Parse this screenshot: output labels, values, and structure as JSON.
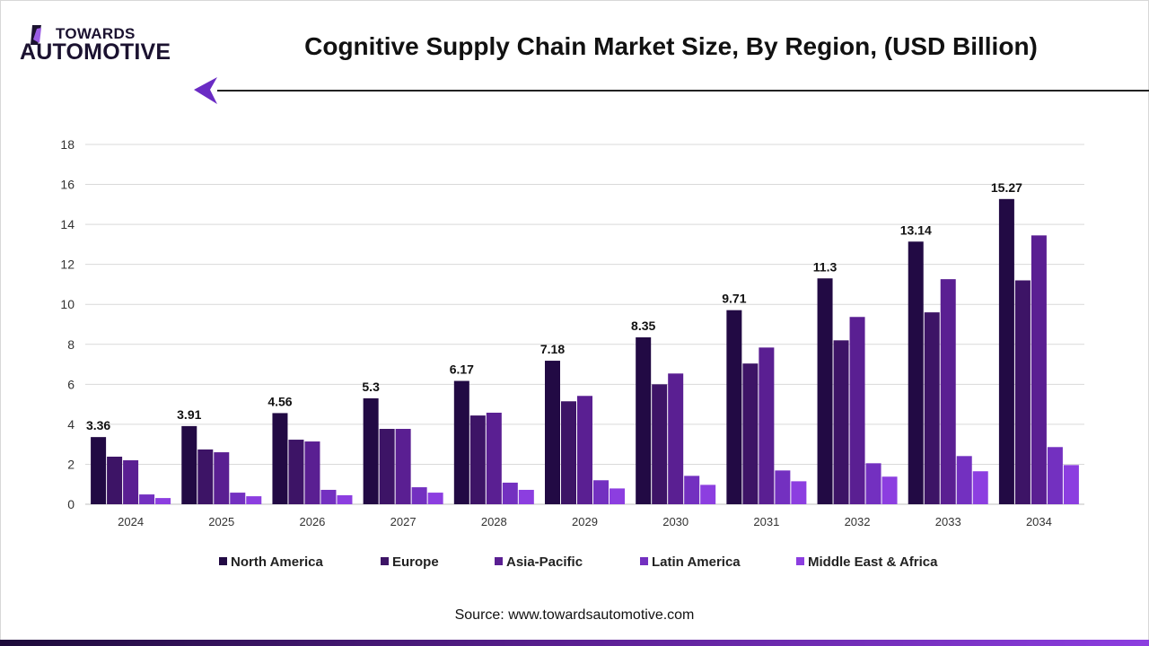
{
  "logo": {
    "top": "TOWARDS",
    "bottom": "AUTOMOTIVE"
  },
  "header": {
    "title": "Cognitive Supply Chain Market Size, By Region, (USD Billion)"
  },
  "footer": {
    "source": "Source: www.towardsautomotive.com"
  },
  "chart_data": {
    "type": "bar",
    "title": "Cognitive Supply Chain Market Size, By Region, (USD Billion)",
    "xlabel": "",
    "ylabel": "",
    "ylim": [
      0,
      18
    ],
    "yticks": [
      0,
      2,
      4,
      6,
      8,
      10,
      12,
      14,
      16,
      18
    ],
    "grid": true,
    "legend": "bottom",
    "categories": [
      "2024",
      "2025",
      "2026",
      "2027",
      "2028",
      "2029",
      "2030",
      "2031",
      "2032",
      "2033",
      "2034"
    ],
    "series": [
      {
        "name": "North America",
        "color": "#220a44",
        "values": [
          3.36,
          3.91,
          4.56,
          5.3,
          6.17,
          7.18,
          8.35,
          9.71,
          11.3,
          13.14,
          15.27
        ],
        "labeled": true
      },
      {
        "name": "Europe",
        "color": "#3d1466",
        "values": [
          2.38,
          2.74,
          3.23,
          3.77,
          4.44,
          5.15,
          6.0,
          7.04,
          8.2,
          9.6,
          11.2
        ]
      },
      {
        "name": "Asia-Pacific",
        "color": "#5a1f92",
        "values": [
          2.2,
          2.6,
          3.14,
          3.77,
          4.58,
          5.42,
          6.54,
          7.84,
          9.37,
          11.26,
          13.45
        ]
      },
      {
        "name": "Latin America",
        "color": "#7330c0",
        "values": [
          0.49,
          0.58,
          0.72,
          0.85,
          1.08,
          1.2,
          1.42,
          1.69,
          2.05,
          2.41,
          2.86
        ]
      },
      {
        "name": "Middle East & Africa",
        "color": "#8c3ee0",
        "values": [
          0.31,
          0.4,
          0.45,
          0.58,
          0.72,
          0.79,
          0.97,
          1.15,
          1.38,
          1.65,
          1.96
        ]
      }
    ]
  }
}
